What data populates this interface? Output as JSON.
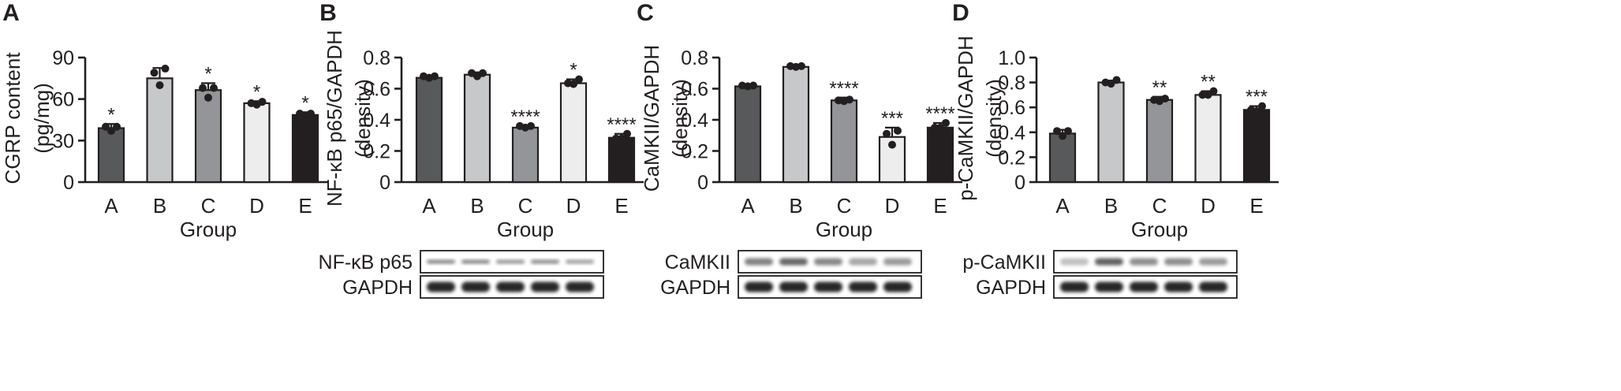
{
  "chart_data": [
    {
      "type": "bar",
      "panel_label": "A",
      "ylabel": [
        "CGRP content",
        "(pg/mg)"
      ],
      "xlabel": "Group",
      "categories": [
        "A",
        "B",
        "C",
        "D",
        "E"
      ],
      "values": [
        39,
        75,
        66.5,
        57,
        48.5
      ],
      "errors": [
        3,
        7.5,
        5,
        1.5,
        2
      ],
      "points": [
        [
          37,
          40,
          40
        ],
        [
          70,
          79,
          82
        ],
        [
          61,
          68,
          68
        ],
        [
          56,
          57,
          58
        ],
        [
          47.5,
          49.5,
          49.5
        ]
      ],
      "significance": [
        "*",
        "",
        "*",
        "*",
        "*"
      ],
      "ylim": [
        0,
        90
      ],
      "yticks": [
        "0",
        "30",
        "60",
        "90"
      ],
      "bar_colors": [
        "#58595b",
        "#c7c8ca",
        "#939598",
        "#ededee",
        "#231f20"
      ],
      "blots": []
    },
    {
      "type": "bar",
      "panel_label": "B",
      "ylabel": [
        "NF-κB p65/GAPDH",
        "(density)"
      ],
      "xlabel": "Group",
      "categories": [
        "A",
        "B",
        "C",
        "D",
        "E"
      ],
      "values": [
        0.67,
        0.69,
        0.35,
        0.635,
        0.285
      ],
      "errors": [
        0.012,
        0.015,
        0.01,
        0.025,
        0.025
      ],
      "points": [
        [
          0.67,
          0.68,
          0.68
        ],
        [
          0.68,
          0.7,
          0.7
        ],
        [
          0.35,
          0.36,
          0.36
        ],
        [
          0.63,
          0.635,
          0.66
        ],
        [
          0.28,
          0.28,
          0.31
        ]
      ],
      "significance": [
        "",
        "",
        "****",
        "*",
        "****"
      ],
      "ylim": [
        0,
        0.8
      ],
      "yticks": [
        "0",
        "0.2",
        "0.4",
        "0.6",
        "0.8"
      ],
      "bar_colors": [
        "#58595b",
        "#c7c8ca",
        "#939598",
        "#ededee",
        "#231f20"
      ],
      "blots": [
        {
          "label": "NF-κB p65",
          "bands": [
            0.55,
            0.55,
            0.4,
            0.5,
            0.3
          ],
          "style": "faint"
        },
        {
          "label": "GAPDH",
          "bands": [
            1,
            1,
            1,
            1,
            1
          ],
          "style": "strong"
        }
      ]
    },
    {
      "type": "bar",
      "panel_label": "C",
      "ylabel": [
        "CaMKII/GAPDH",
        "(density)"
      ],
      "xlabel": "Group",
      "categories": [
        "A",
        "B",
        "C",
        "D",
        "E"
      ],
      "values": [
        0.615,
        0.74,
        0.525,
        0.29,
        0.35
      ],
      "errors": [
        0.008,
        0.008,
        0.018,
        0.06,
        0.03
      ],
      "points": [
        [
          0.615,
          0.62,
          0.62
        ],
        [
          0.74,
          0.745,
          0.745
        ],
        [
          0.52,
          0.525,
          0.53
        ],
        [
          0.24,
          0.31,
          0.33
        ],
        [
          0.35,
          0.35,
          0.38
        ]
      ],
      "significance": [
        "",
        "",
        "****",
        "***",
        "****"
      ],
      "ylim": [
        0,
        0.8
      ],
      "yticks": [
        "0",
        "0.2",
        "0.4",
        "0.6",
        "0.8"
      ],
      "bar_colors": [
        "#58595b",
        "#c7c8ca",
        "#939598",
        "#ededee",
        "#231f20"
      ],
      "blots": [
        {
          "label": "CaMKII",
          "bands": [
            0.65,
            0.85,
            0.6,
            0.35,
            0.45
          ],
          "style": "medium"
        },
        {
          "label": "GAPDH",
          "bands": [
            1,
            1,
            1,
            1,
            1
          ],
          "style": "strong"
        }
      ]
    },
    {
      "type": "bar",
      "panel_label": "D",
      "ylabel": [
        "p-CaMKII/GAPDH",
        "(density)"
      ],
      "xlabel": "Group",
      "categories": [
        "A",
        "B",
        "C",
        "D",
        "E"
      ],
      "values": [
        0.39,
        0.8,
        0.66,
        0.7,
        0.58
      ],
      "errors": [
        0.03,
        0.015,
        0.025,
        0.03,
        0.03
      ],
      "points": [
        [
          0.37,
          0.41,
          0.41
        ],
        [
          0.79,
          0.8,
          0.82
        ],
        [
          0.65,
          0.66,
          0.67
        ],
        [
          0.7,
          0.7,
          0.73
        ],
        [
          0.57,
          0.58,
          0.61
        ]
      ],
      "significance": [
        "",
        "",
        "**",
        "**",
        "***"
      ],
      "ylim": [
        0,
        1.0
      ],
      "yticks": [
        "0",
        "0.2",
        "0.4",
        "0.6",
        "0.8",
        "1.0"
      ],
      "bar_colors": [
        "#58595b",
        "#c7c8ca",
        "#939598",
        "#ededee",
        "#231f20"
      ],
      "blots": [
        {
          "label": "p-CaMKII",
          "bands": [
            0.15,
            0.9,
            0.55,
            0.55,
            0.45
          ],
          "style": "medium"
        },
        {
          "label": "GAPDH",
          "bands": [
            1,
            1,
            1,
            1,
            1
          ],
          "style": "strong"
        }
      ]
    }
  ]
}
